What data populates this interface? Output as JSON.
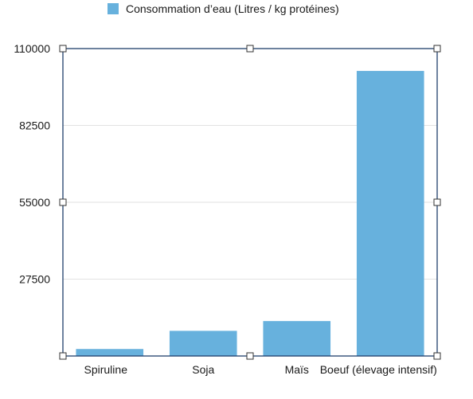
{
  "chart_data": {
    "type": "bar",
    "categories": [
      "Spiruline",
      "Soja",
      "Maïs",
      "Boeuf (élevage intensif)"
    ],
    "series": [
      {
        "name": "Consommation d’eau (Litres / kg protéines)",
        "values": [
          2500,
          9000,
          12500,
          102000
        ],
        "color": "#67b1dd"
      }
    ],
    "ylim": [
      0,
      110000
    ],
    "yticks": [
      27500,
      55000,
      82500,
      110000
    ],
    "ytick_labels": [
      "27500",
      "55000",
      "82500",
      "110000"
    ],
    "grid": true,
    "legend_position": "top-center",
    "title": "",
    "xlabel": "",
    "ylabel": ""
  },
  "colors": {
    "bar": "#67b1dd",
    "frame": "#1f3f6b",
    "grid": "#e2e2e2"
  }
}
